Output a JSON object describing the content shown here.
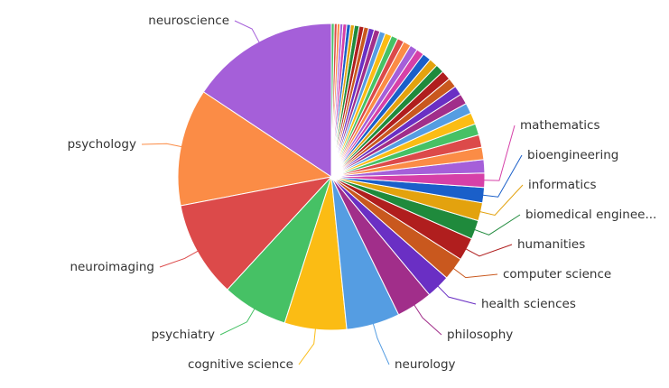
{
  "chart_data": {
    "type": "pie",
    "categories": [
      "neuroscience",
      "psychology",
      "neuroimaging",
      "psychiatry",
      "cognitive science",
      "neurology",
      "philosophy",
      "health sciences",
      "computer science",
      "humanities",
      "biomedical enginee...",
      "informatics",
      "bioengineering",
      "mathematics",
      null,
      null,
      null,
      null,
      null,
      null,
      null,
      null,
      null,
      null,
      null,
      null,
      null,
      null,
      null,
      null,
      null,
      null,
      null,
      null,
      null,
      null,
      null,
      null,
      null,
      null,
      null,
      null,
      null,
      null,
      null,
      null
    ],
    "values": [
      15.6,
      12.3,
      10.1,
      6.9,
      6.5,
      5.6,
      3.8,
      2.5,
      2.4,
      2.4,
      2.0,
      1.9,
      1.6,
      1.5,
      1.4,
      1.3,
      1.3,
      1.2,
      1.2,
      1.1,
      1.1,
      1.0,
      1.0,
      1.0,
      0.9,
      0.9,
      0.9,
      0.8,
      0.8,
      0.8,
      0.7,
      0.7,
      0.7,
      0.6,
      0.6,
      0.6,
      0.5,
      0.5,
      0.5,
      0.4,
      0.4,
      0.4,
      0.3,
      0.3,
      0.3,
      0.3
    ],
    "colors": [
      "#a55fd9",
      "#fb8c46",
      "#dc4a4a",
      "#46c165",
      "#fbbc14",
      "#559de2",
      "#a12e8a",
      "#6a2fc4",
      "#c9581e",
      "#b01e1e",
      "#1f8a3c",
      "#e3a20e",
      "#1a5fc9",
      "#d640a8"
    ],
    "direction": "counterclockwise"
  }
}
